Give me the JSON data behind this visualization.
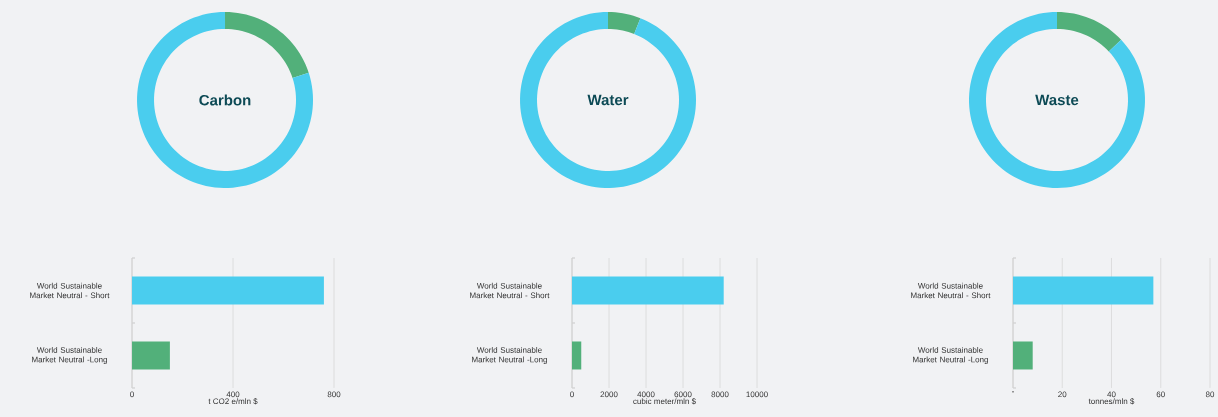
{
  "chart_data": [
    {
      "type": "donut",
      "title": "Carbon",
      "categories": [
        null,
        null
      ],
      "values": [
        20,
        80
      ],
      "colors": [
        "#52b07a",
        "#4acdee"
      ]
    },
    {
      "type": "donut",
      "title": "Water",
      "categories": [
        null,
        null
      ],
      "values": [
        6,
        94
      ],
      "colors": [
        "#52b07a",
        "#4acdee"
      ]
    },
    {
      "type": "donut",
      "title": "Waste",
      "categories": [
        null,
        null
      ],
      "values": [
        13,
        87
      ],
      "colors": [
        "#52b07a",
        "#4acdee"
      ]
    },
    {
      "type": "bar",
      "orientation": "horizontal",
      "categories": [
        "World Sustainable Market Neutral - Short",
        "World Sustainable Market Neutral -Long"
      ],
      "values": [
        760,
        150
      ],
      "colors": [
        "#4acdee",
        "#52b07a"
      ],
      "xlabel": "t CO2 e/mln $",
      "xlim": [
        0,
        800
      ],
      "xticks": [
        0,
        400,
        800
      ],
      "grid": "x"
    },
    {
      "type": "bar",
      "orientation": "horizontal",
      "categories": [
        "World Sustainable Market Neutral - Short",
        "World Sustainable Market Neutral -Long"
      ],
      "values": [
        8200,
        500
      ],
      "colors": [
        "#4acdee",
        "#52b07a"
      ],
      "xlabel": "cubic meter/mln $",
      "xlim": [
        0,
        10000
      ],
      "xticks": [
        0,
        2000,
        4000,
        6000,
        8000,
        10000
      ],
      "grid": "x"
    },
    {
      "type": "bar",
      "orientation": "horizontal",
      "categories": [
        "World Sustainable Market Neutral - Short",
        "World Sustainable Market Neutral -Long"
      ],
      "values": [
        57,
        8
      ],
      "colors": [
        "#4acdee",
        "#52b07a"
      ],
      "xlabel": "tonnes/mln $",
      "xlim": [
        0,
        80
      ],
      "xticks": [
        {
          "value": 0,
          "label": "-"
        },
        20,
        40,
        60,
        80
      ],
      "grid": "x"
    }
  ]
}
